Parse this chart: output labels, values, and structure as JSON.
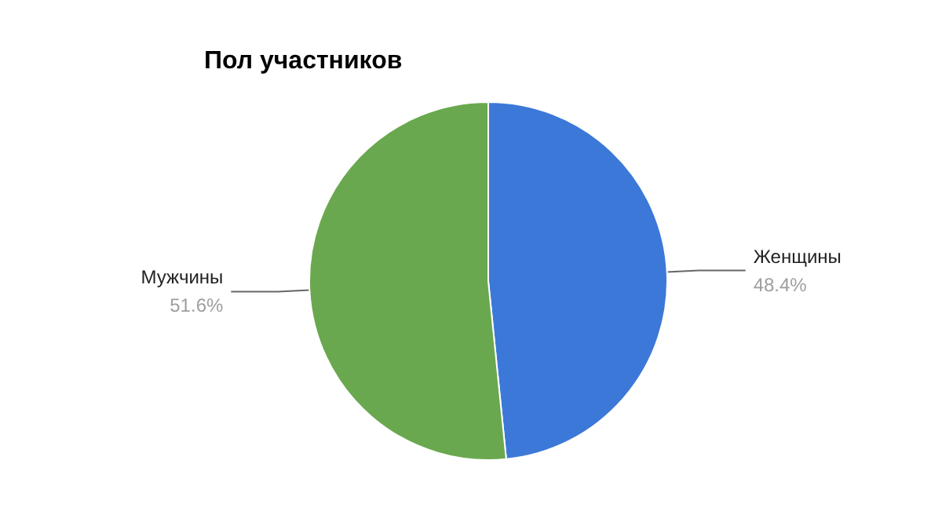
{
  "chart_data": {
    "type": "pie",
    "title": "Пол участников",
    "categories": [
      "Женщины",
      "Мужчины"
    ],
    "values": [
      48.4,
      51.6
    ],
    "colors": [
      "#3c78d8",
      "#6aa84f"
    ],
    "value_labels": [
      "48.4%",
      "51.6%"
    ]
  }
}
